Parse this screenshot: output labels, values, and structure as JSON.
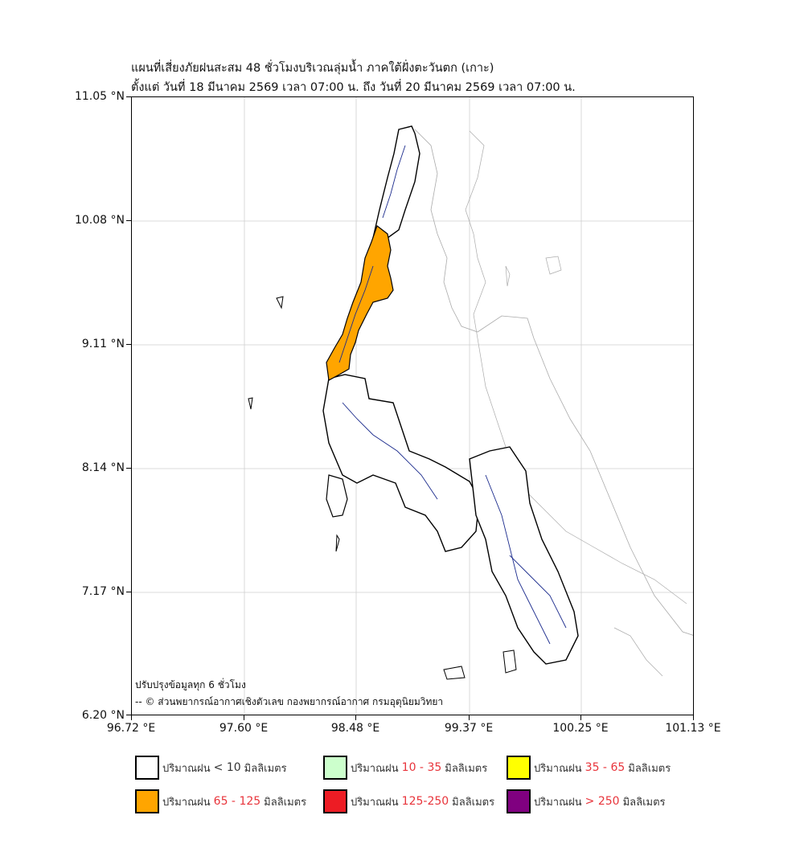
{
  "title": {
    "line1": "แผนที่เสี่ยงภัยฝนสะสม 48 ชั่วโมงบริเวณลุ่มน้ำ ภาคใต้ฝั่งตะวันตก (เกาะ)",
    "line2": "ตั้งแต่ วันที่ 18 มีนาคม 2569 เวลา 07:00 น. ถึง วันที่ 20 มีนาคม 2569 เวลา 07:00 น."
  },
  "axes": {
    "y_labels": [
      "11.05 °N",
      "10.08 °N",
      "9.11 °N",
      "8.14 °N",
      "7.17 °N",
      "6.20 °N"
    ],
    "x_labels": [
      "96.72 °E",
      "97.60 °E",
      "98.48 °E",
      "99.37 °E",
      "100.25 °E",
      "101.13 °E"
    ],
    "lon_range": [
      96.72,
      101.13
    ],
    "lat_range": [
      6.2,
      11.05
    ],
    "grid": true
  },
  "notes": {
    "update": "ปรับปรุงข้อมูลทุก 6 ชั่วโมง",
    "credit": "-- © ส่วนพยากรณ์อากาศเชิงตัวเลข กองพยากรณ์อากาศ กรมอุตุนิยมวิทยา"
  },
  "map": {
    "highlighted_category": "65 - 125",
    "highlight_color": "#ffa500",
    "river_color": "#1a2a8c",
    "coast_color": "#000000"
  },
  "legend": [
    {
      "prefix": "ปริมาณฝน",
      "range": "< 10",
      "unit": "มิลลิเมตร",
      "color": "#ffffff"
    },
    {
      "prefix": "ปริมาณฝน",
      "range": "10 - 35",
      "unit": "มิลลิเมตร",
      "color": "#ccffcc"
    },
    {
      "prefix": "ปริมาณฝน",
      "range": "35 - 65",
      "unit": "มิลลิเมตร",
      "color": "#ffff00"
    },
    {
      "prefix": "ปริมาณฝน",
      "range": "65 - 125",
      "unit": "มิลลิเมตร",
      "color": "#ffa500"
    },
    {
      "prefix": "ปริมาณฝน",
      "range": "125-250",
      "unit": "มิลลิเมตร",
      "color": "#ed1c24"
    },
    {
      "prefix": "ปริมาณฝน",
      "range": "> 250",
      "unit": "มิลลิเมตร",
      "color": "#800080"
    }
  ]
}
